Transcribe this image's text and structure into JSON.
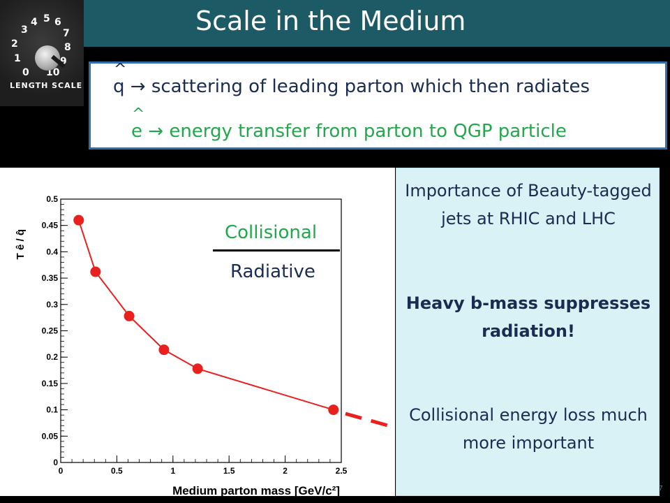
{
  "header": {
    "title": "Scale in the Medium"
  },
  "logo": {
    "dial_numbers": [
      "0",
      "1",
      "2",
      "3",
      "4",
      "5",
      "6",
      "7",
      "8",
      "9",
      "10"
    ],
    "label": "LENGTH SCALE"
  },
  "definitions": {
    "q": {
      "hat": "^",
      "symbol": "q",
      "arrow": "→",
      "text": "scattering of leading parton which then radiates"
    },
    "e": {
      "hat": "^",
      "symbol": "e",
      "arrow": "→",
      "text": "energy transfer from parton to QGP particle"
    }
  },
  "ratio": {
    "numerator": "Collisional",
    "denominator": "Radiative"
  },
  "chart_data": {
    "type": "line",
    "xlabel": "Medium parton mass [GeV/c²]",
    "ylabel": "T ê / q̂",
    "xlim": [
      0,
      2.5
    ],
    "ylim": [
      0,
      0.5
    ],
    "x_ticks": [
      "0",
      "0.5",
      "1",
      "1.5",
      "2",
      "2.5"
    ],
    "y_ticks": [
      "0",
      "0.05",
      "0.1",
      "0.15",
      "0.2",
      "0.25",
      "0.3",
      "0.35",
      "0.4",
      "0.45",
      "0.5"
    ],
    "series": [
      {
        "x": [
          0.16,
          0.31,
          0.61,
          0.92,
          1.22,
          2.43
        ],
        "y": [
          0.46,
          0.362,
          0.278,
          0.214,
          0.178,
          0.1
        ],
        "color": "#e8201e"
      }
    ],
    "extrapolation": {
      "style": "dashed",
      "color": "#e8201e",
      "x": [
        2.45,
        3.0
      ],
      "y": [
        0.098,
        0.085
      ]
    },
    "grid": false
  },
  "info": {
    "line1": "Importance of Beauty-tagged jets at RHIC and LHC",
    "line2": "Heavy b-mass suppresses radiation!",
    "line3": "Collisional energy loss much more important"
  },
  "footer": {
    "page_number": "7"
  }
}
